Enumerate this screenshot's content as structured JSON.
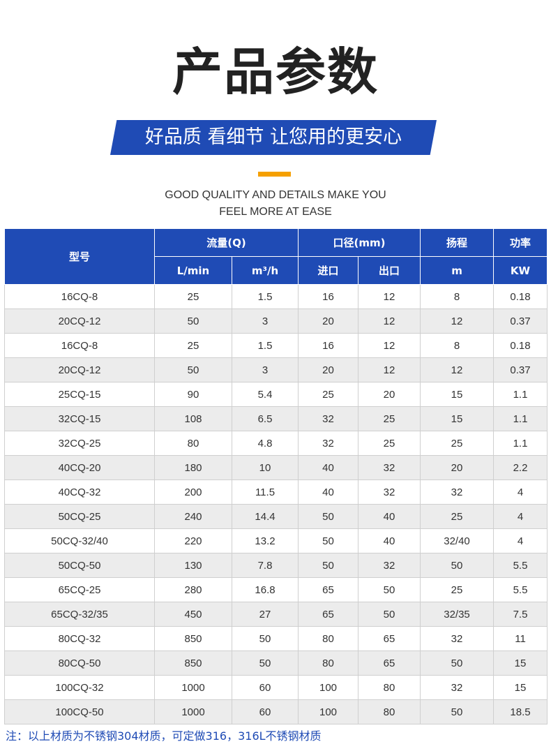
{
  "header": {
    "title": "产品参数",
    "banner": "好品质 看细节 让您用的更安心",
    "subtitle_line1": "GOOD QUALITY AND DETAILS MAKE YOU",
    "subtitle_line2": "FEEL MORE AT EASE"
  },
  "colors": {
    "brand_blue": "#1f4bb5",
    "accent_orange": "#f5a000",
    "row_alt": "#ececec"
  },
  "table": {
    "headers": {
      "model": "型号",
      "flow": "流量(Q)",
      "diameter": "口径(mm)",
      "head": "扬程",
      "power": "功率",
      "flow_lmin": "L/min",
      "flow_m3h": "m³/h",
      "inlet": "进口",
      "outlet": "出口",
      "head_unit": "m",
      "power_unit": "KW"
    },
    "rows": [
      [
        "16CQ-8",
        "25",
        "1.5",
        "16",
        "12",
        "8",
        "0.18"
      ],
      [
        "20CQ-12",
        "50",
        "3",
        "20",
        "12",
        "12",
        "0.37"
      ],
      [
        "16CQ-8",
        "25",
        "1.5",
        "16",
        "12",
        "8",
        "0.18"
      ],
      [
        "20CQ-12",
        "50",
        "3",
        "20",
        "12",
        "12",
        "0.37"
      ],
      [
        "25CQ-15",
        "90",
        "5.4",
        "25",
        "20",
        "15",
        "1.1"
      ],
      [
        "32CQ-15",
        "108",
        "6.5",
        "32",
        "25",
        "15",
        "1.1"
      ],
      [
        "32CQ-25",
        "80",
        "4.8",
        "32",
        "25",
        "25",
        "1.1"
      ],
      [
        "40CQ-20",
        "180",
        "10",
        "40",
        "32",
        "20",
        "2.2"
      ],
      [
        "40CQ-32",
        "200",
        "11.5",
        "40",
        "32",
        "32",
        "4"
      ],
      [
        "50CQ-25",
        "240",
        "14.4",
        "50",
        "40",
        "25",
        "4"
      ],
      [
        "50CQ-32/40",
        "220",
        "13.2",
        "50",
        "40",
        "32/40",
        "4"
      ],
      [
        "50CQ-50",
        "130",
        "7.8",
        "50",
        "32",
        "50",
        "5.5"
      ],
      [
        "65CQ-25",
        "280",
        "16.8",
        "65",
        "50",
        "25",
        "5.5"
      ],
      [
        "65CQ-32/35",
        "450",
        "27",
        "65",
        "50",
        "32/35",
        "7.5"
      ],
      [
        "80CQ-32",
        "850",
        "50",
        "80",
        "65",
        "32",
        "11"
      ],
      [
        "80CQ-50",
        "850",
        "50",
        "80",
        "65",
        "50",
        "15"
      ],
      [
        "100CQ-32",
        "1000",
        "60",
        "100",
        "80",
        "32",
        "15"
      ],
      [
        "100CQ-50",
        "1000",
        "60",
        "100",
        "80",
        "50",
        "18.5"
      ]
    ]
  },
  "note": "注：以上材质为不锈钢304材质，可定做316，316L不锈钢材质"
}
